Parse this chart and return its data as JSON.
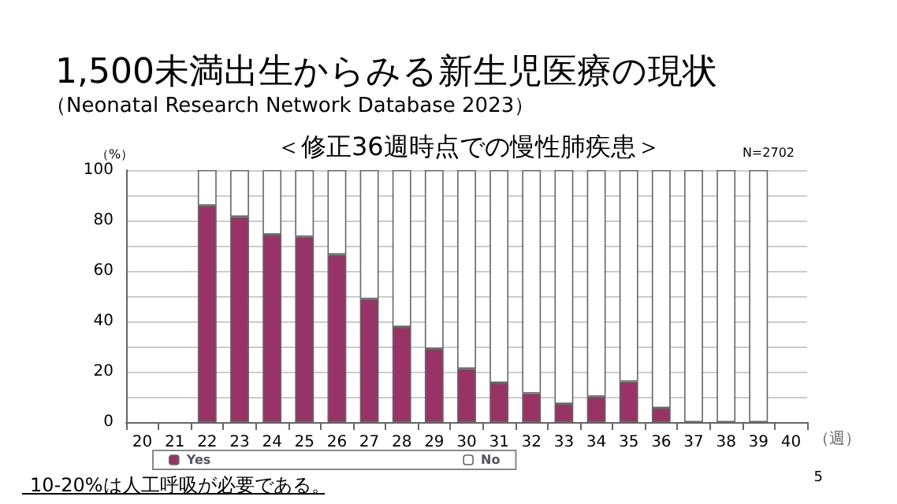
{
  "chart_data": {
    "type": "bar",
    "title": "1,500未満出生からみる新生児医療の現状",
    "subtitle": "（Neonatal Research Network Database 2023）",
    "xlabel": "（週）",
    "ylabel": "（%）",
    "annotations": [
      "＜修正36週時点での慢性肺疾患＞",
      "N=2702",
      "10-20%は人工呼吸が必要である。",
      "5"
    ],
    "categories": [
      "20",
      "21",
      "22",
      "23",
      "24",
      "25",
      "26",
      "27",
      "28",
      "29",
      "30",
      "31",
      "32",
      "33",
      "34",
      "35",
      "36",
      "37",
      "38",
      "39",
      "40"
    ],
    "stacked": true,
    "series": [
      {
        "name": "Yes",
        "color": "#993366",
        "values": [
          null,
          null,
          86,
          81.5,
          74.4,
          73.6,
          66.5,
          48.9,
          37.8,
          29.1,
          21.2,
          15.6,
          11.4,
          7.2,
          10.1,
          16.1,
          5.6,
          0,
          0,
          0,
          null
        ]
      },
      {
        "name": "No",
        "color": "#ffffff",
        "values": [
          null,
          null,
          14,
          18.5,
          25.6,
          26.4,
          33.5,
          51.1,
          62.2,
          70.9,
          78.8,
          84.4,
          88.6,
          92.8,
          89.9,
          83.9,
          94.4,
          100,
          100,
          100,
          null
        ]
      }
    ],
    "ylim": [
      0,
      100
    ],
    "yticks": [
      0,
      {
        "value": 10,
        "label": null
      },
      20,
      {
        "value": 30,
        "label": null
      },
      40,
      {
        "value": 50,
        "label": null
      },
      60,
      {
        "value": 70,
        "label": null
      },
      80,
      {
        "value": 90,
        "label": null
      },
      100
    ],
    "grid": "y",
    "legend": "bottom"
  }
}
